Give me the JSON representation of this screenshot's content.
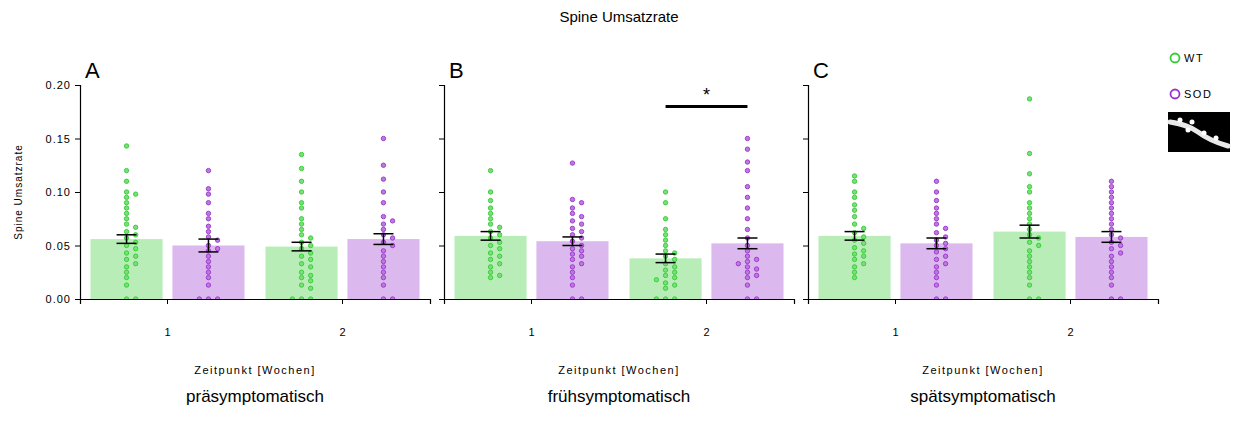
{
  "title": "Spine Umsatzrate",
  "chart_data": [
    {
      "type": "bar",
      "panel_label": "A",
      "title": "präsymptomatisch",
      "x_label": "Zeitpunkt [Wochen]",
      "y_label": "Spine Umsatzrate",
      "categories": [
        "1",
        "2"
      ],
      "ylim": [
        0,
        0.2
      ],
      "yticks": [
        {
          "value": 0,
          "label": "0.00"
        },
        {
          "value": 0.05,
          "label": "0.05"
        },
        {
          "value": 0.1,
          "label": "0.10"
        },
        {
          "value": 0.15,
          "label": "0.15"
        },
        {
          "value": 0.2,
          "label": "0.20"
        }
      ],
      "series": [
        {
          "color": "#33cc33",
          "values": [
            0.056,
            0.049
          ],
          "errors": [
            0.004,
            0.004
          ],
          "points": [
            [
              0.143,
              0.12,
              0.11,
              0.1,
              0.098,
              0.095,
              0.09,
              0.085,
              0.08,
              0.075,
              0.07,
              0.067,
              0.063,
              0.06,
              0.057,
              0.053,
              0.05,
              0.047,
              0.043,
              0.04,
              0.037,
              0.033,
              0.03,
              0.025,
              0.02,
              0.013,
              0,
              0
            ],
            [
              0.135,
              0.122,
              0.11,
              0.1,
              0.09,
              0.085,
              0.075,
              0.07,
              0.065,
              0.06,
              0.057,
              0.053,
              0.05,
              0.047,
              0.043,
              0.04,
              0.037,
              0.033,
              0.03,
              0.025,
              0.022,
              0.02,
              0.017,
              0.013,
              0.01,
              0,
              0,
              0
            ]
          ]
        },
        {
          "color": "#9933cc",
          "values": [
            0.05,
            0.056
          ],
          "errors": [
            0.006,
            0.005
          ],
          "points": [
            [
              0.12,
              0.103,
              0.098,
              0.09,
              0.08,
              0.075,
              0.068,
              0.063,
              0.058,
              0.055,
              0.05,
              0.047,
              0.045,
              0.04,
              0.035,
              0.03,
              0.025,
              0.02,
              0.013,
              0,
              0,
              0
            ],
            [
              0.15,
              0.125,
              0.112,
              0.1,
              0.09,
              0.077,
              0.073,
              0.07,
              0.065,
              0.06,
              0.057,
              0.053,
              0.05,
              0.045,
              0.04,
              0.035,
              0.03,
              0.025,
              0.02,
              0.013,
              0,
              0
            ]
          ]
        }
      ]
    },
    {
      "type": "bar",
      "panel_label": "B",
      "title": "frühsymptomatisch",
      "x_label": "Zeitpunkt [Wochen]",
      "categories": [
        "1",
        "2"
      ],
      "ylim": [
        0,
        0.2
      ],
      "yticks": [
        0,
        0.05,
        0.1,
        0.15,
        0.2
      ],
      "tick_labels": "x",
      "series": [
        {
          "color": "#33cc33",
          "values": [
            0.059,
            0.038
          ],
          "errors": [
            0.004,
            0.004
          ],
          "points": [
            [
              0.12,
              0.1,
              0.092,
              0.085,
              0.08,
              0.075,
              0.07,
              0.067,
              0.063,
              0.06,
              0.057,
              0.053,
              0.05,
              0.047,
              0.043,
              0.04,
              0.037,
              0.033,
              0.03,
              0.025,
              0.022,
              0.02
            ],
            [
              0.1,
              0.09,
              0.075,
              0.065,
              0.06,
              0.055,
              0.05,
              0.045,
              0.043,
              0.04,
              0.037,
              0.033,
              0.03,
              0.027,
              0.025,
              0.022,
              0.02,
              0.018,
              0.015,
              0.013,
              0.01,
              0,
              0,
              0
            ]
          ]
        },
        {
          "color": "#9933cc",
          "values": [
            0.054,
            0.052
          ],
          "errors": [
            0.004,
            0.005
          ],
          "points": [
            [
              0.127,
              0.093,
              0.09,
              0.085,
              0.08,
              0.077,
              0.073,
              0.07,
              0.066,
              0.063,
              0.06,
              0.057,
              0.054,
              0.05,
              0.047,
              0.045,
              0.042,
              0.04,
              0.037,
              0.033,
              0.03,
              0.025,
              0.02,
              0.013,
              0,
              0
            ],
            [
              0.15,
              0.14,
              0.128,
              0.12,
              0.105,
              0.095,
              0.085,
              0.075,
              0.065,
              0.057,
              0.05,
              0.045,
              0.04,
              0.037,
              0.035,
              0.033,
              0.03,
              0.028,
              0.025,
              0.022,
              0.02,
              0.013,
              0,
              0
            ]
          ]
        }
      ],
      "annotations": [
        {
          "text": "*",
          "x": "2",
          "y": 0.18
        }
      ]
    },
    {
      "type": "bar",
      "panel_label": "C",
      "title": "spätsymptomatisch",
      "x_label": "Zeitpunkt [Wochen]",
      "categories": [
        "1",
        "2"
      ],
      "ylim": [
        0,
        0.2
      ],
      "yticks": [
        0,
        0.05,
        0.1,
        0.15,
        0.2
      ],
      "tick_labels": "x",
      "legend": "right",
      "series": [
        {
          "name": "WT",
          "color": "#33cc33",
          "values": [
            0.059,
            0.063
          ],
          "errors": [
            0.004,
            0.006
          ],
          "points": [
            [
              0.115,
              0.11,
              0.1,
              0.095,
              0.088,
              0.083,
              0.077,
              0.07,
              0.066,
              0.062,
              0.058,
              0.055,
              0.052,
              0.048,
              0.045,
              0.042,
              0.04,
              0.037,
              0.033,
              0.03,
              0.025,
              0.02
            ],
            [
              0.187,
              0.136,
              0.117,
              0.105,
              0.1,
              0.09,
              0.085,
              0.08,
              0.075,
              0.07,
              0.065,
              0.06,
              0.057,
              0.053,
              0.05,
              0.045,
              0.04,
              0.035,
              0.03,
              0.025,
              0.02,
              0.013,
              0,
              0
            ]
          ]
        },
        {
          "name": "SOD",
          "color": "#9933cc",
          "values": [
            0.052,
            0.058
          ],
          "errors": [
            0.005,
            0.005
          ],
          "points": [
            [
              0.11,
              0.1,
              0.092,
              0.085,
              0.08,
              0.075,
              0.07,
              0.066,
              0.062,
              0.058,
              0.055,
              0.052,
              0.05,
              0.047,
              0.044,
              0.04,
              0.037,
              0.033,
              0.03,
              0.025,
              0.02,
              0.013,
              0,
              0
            ],
            [
              0.11,
              0.105,
              0.1,
              0.095,
              0.09,
              0.085,
              0.08,
              0.075,
              0.07,
              0.065,
              0.06,
              0.057,
              0.053,
              0.05,
              0.047,
              0.043,
              0.04,
              0.035,
              0.03,
              0.025,
              0.02,
              0.013,
              0,
              0
            ]
          ]
        }
      ]
    }
  ]
}
